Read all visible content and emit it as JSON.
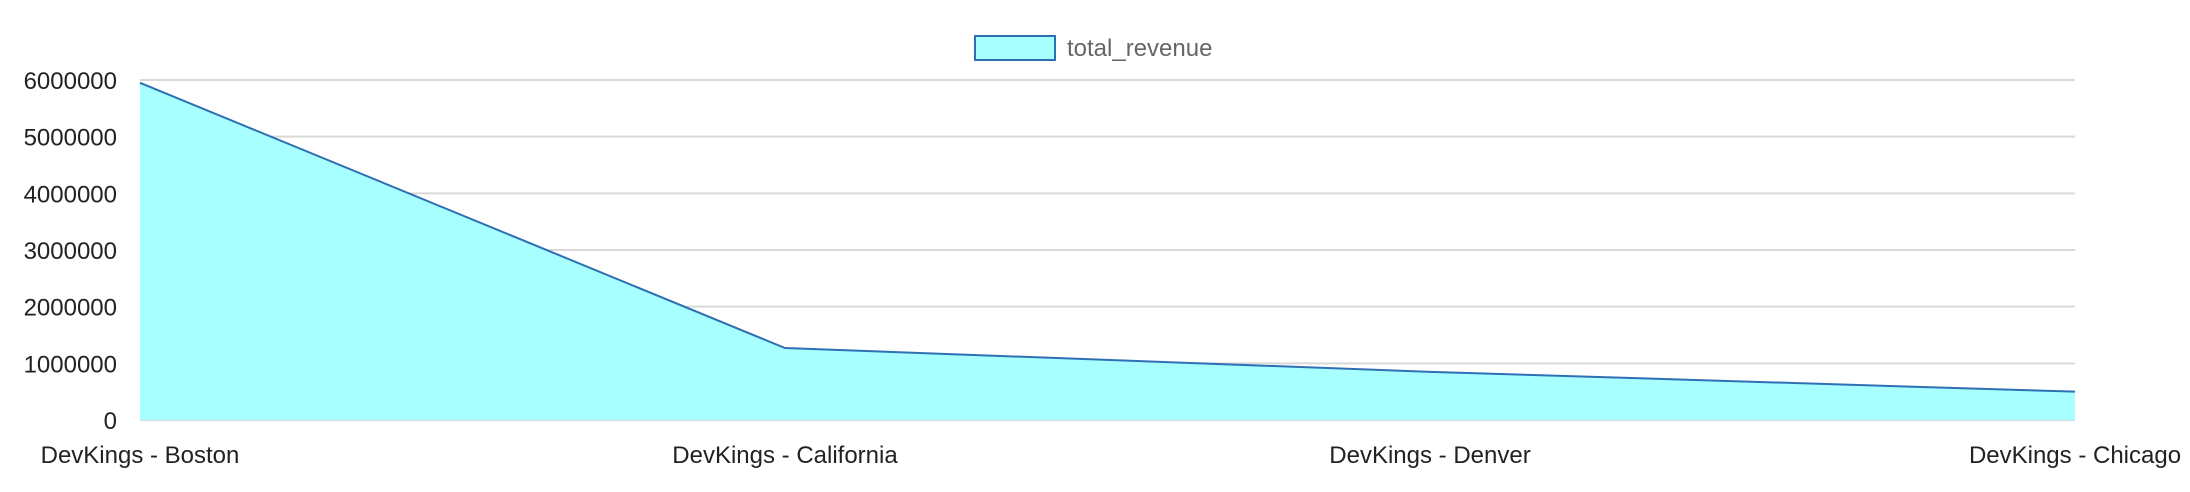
{
  "chart_data": {
    "type": "area",
    "categories": [
      "DevKings - Boston",
      "DevKings - California",
      "DevKings - Denver",
      "DevKings - Chicago"
    ],
    "series": [
      {
        "name": "total_revenue",
        "values": [
          5950000,
          1270000,
          850000,
          500000
        ]
      }
    ],
    "ylim": [
      0,
      6000000
    ],
    "yticks": [
      0,
      1000000,
      2000000,
      3000000,
      4000000,
      5000000,
      6000000
    ],
    "ytick_labels": [
      "0",
      "1000000",
      "2000000",
      "3000000",
      "4000000",
      "5000000",
      "6000000"
    ],
    "grid": true,
    "legend_position": "top-center",
    "colors": {
      "fill": "#a8ffff",
      "line": "#2f6fb3",
      "grid": "#d9d9d9"
    }
  }
}
